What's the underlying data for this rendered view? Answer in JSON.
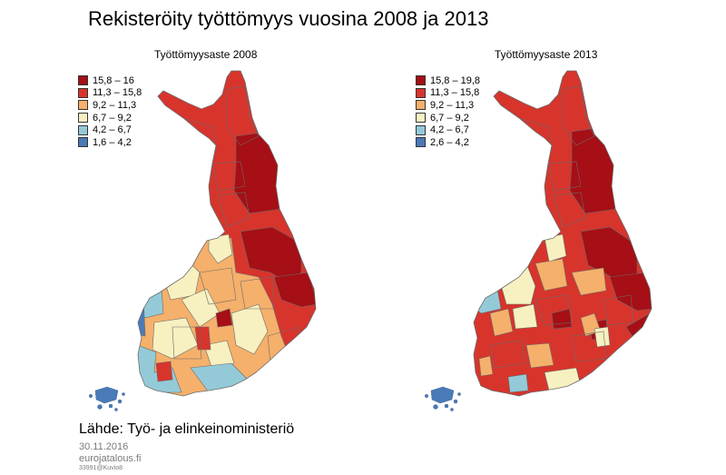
{
  "title": "Rekisteröity työttömyys vuosina 2008 ja 2013",
  "maps": [
    {
      "title": "Työttömyysaste 2008",
      "legend": [
        {
          "label": "15,8 – 16",
          "color": "#a50f15"
        },
        {
          "label": "11,3 – 15,8",
          "color": "#d7342c"
        },
        {
          "label": "9,2 – 11,3",
          "color": "#f5b06b"
        },
        {
          "label": "6,7 – 9,2",
          "color": "#f7f0c0"
        },
        {
          "label": "4,2 – 6,7",
          "color": "#94cad8"
        },
        {
          "label": "1,6 – 4,2",
          "color": "#4a7ab7"
        }
      ]
    },
    {
      "title": "Työttömyysaste 2013",
      "legend": [
        {
          "label": "15,8 – 19,8",
          "color": "#a50f15"
        },
        {
          "label": "11,3 – 15,8",
          "color": "#d7342c"
        },
        {
          "label": "9,2 – 11,3",
          "color": "#f5b06b"
        },
        {
          "label": "6,7 – 9,2",
          "color": "#f7f0c0"
        },
        {
          "label": "4,2 – 6,7",
          "color": "#94cad8"
        },
        {
          "label": "2,6 – 4,2",
          "color": "#4a7ab7"
        }
      ]
    }
  ],
  "source": "Lähde: Työ- ja elinkeinoministeriö",
  "date": "30.11.2016",
  "site": "eurojatalous.fi",
  "code": "33991@Kuvio8"
}
